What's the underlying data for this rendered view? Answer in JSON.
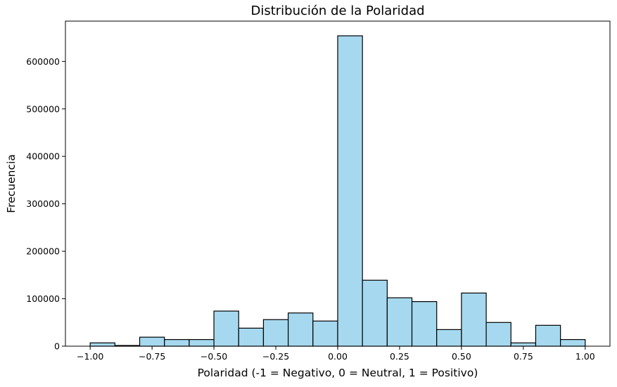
{
  "chart_data": {
    "type": "bar",
    "title": "Distribución de la Polaridad",
    "xlabel": "Polaridad (-1 = Negativo, 0 = Neutral, 1 = Positivo)",
    "ylabel": "Frecuencia",
    "bin_edges": [
      -1.0,
      -0.9,
      -0.8,
      -0.7,
      -0.6,
      -0.5,
      -0.4,
      -0.3,
      -0.2,
      -0.1,
      0.0,
      0.1,
      0.2,
      0.3,
      0.4,
      0.5,
      0.6,
      0.7,
      0.8,
      0.9,
      1.0
    ],
    "values": [
      7000,
      1500,
      19000,
      14000,
      14000,
      74000,
      38000,
      56000,
      70000,
      53000,
      654000,
      139000,
      102000,
      94000,
      35000,
      112000,
      50000,
      7000,
      44000,
      14000
    ],
    "xlim": [
      -1.1,
      1.1
    ],
    "ylim": [
      0,
      685000
    ],
    "xticks": [
      -1.0,
      -0.75,
      -0.5,
      -0.25,
      0.0,
      0.25,
      0.5,
      0.75,
      1.0
    ],
    "xtick_labels": [
      "−1.00",
      "−0.75",
      "−0.50",
      "−0.25",
      "0.00",
      "0.25",
      "0.50",
      "0.75",
      "1.00"
    ],
    "yticks": [
      0,
      100000,
      200000,
      300000,
      400000,
      500000,
      600000
    ],
    "ytick_labels": [
      "0",
      "100000",
      "200000",
      "300000",
      "400000",
      "500000",
      "600000"
    ],
    "bar_color": "#a6d9ef",
    "edge_color": "#000000",
    "grid": false,
    "legend": "none"
  }
}
